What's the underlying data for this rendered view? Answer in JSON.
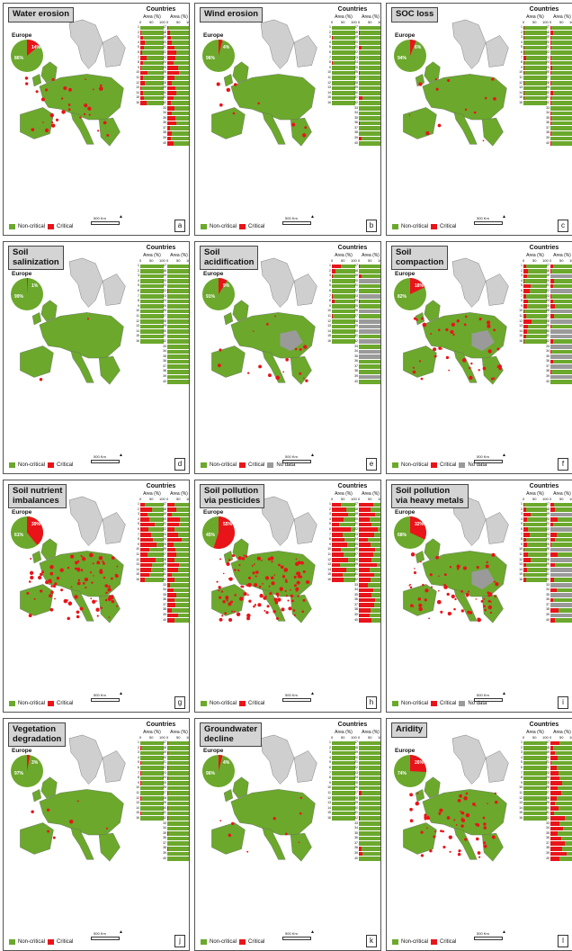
{
  "countries_title": "Countries",
  "area_label": "Area (%)",
  "ticks": [
    "0",
    "50",
    "100"
  ],
  "europe_label": "Europe",
  "legend": {
    "noncritical": "Non-critical",
    "critical": "Critical",
    "nodata": "No data"
  },
  "scale_label": "500",
  "scale_unit": "Km",
  "colors": {
    "noncritical": "#6ba82c",
    "critical": "#e8141a",
    "nodata": "#9a9a9a"
  },
  "codes_left": [
    "1",
    "2",
    "3",
    "4",
    "5",
    "6",
    "7",
    "8",
    "9",
    "10",
    "11",
    "12",
    "13",
    "14",
    "15",
    "16"
  ],
  "codes_right": [
    "17",
    "18",
    "19",
    "20",
    "21",
    "22",
    "23",
    "24",
    "25",
    "26",
    "27",
    "28",
    "29",
    "30",
    "31",
    "32",
    "33",
    "34",
    "35",
    "36",
    "37",
    "38",
    "39",
    "40"
  ],
  "panels": [
    {
      "title": "Water erosion",
      "letter": "a",
      "pie_noncritical": 86,
      "pie_label": "86%",
      "crit_label": "14%",
      "has_nodata": false,
      "left": [
        0,
        5,
        10,
        20,
        15,
        8,
        25,
        10,
        5,
        30,
        12,
        20,
        5,
        10,
        15,
        25
      ],
      "right": [
        5,
        10,
        15,
        20,
        30,
        40,
        35,
        25,
        45,
        50,
        30,
        20,
        35,
        40,
        25,
        15,
        30,
        20,
        35,
        40,
        10,
        20,
        15,
        25
      ]
    },
    {
      "title": "Wind erosion",
      "letter": "b",
      "pie_noncritical": 96,
      "pie_label": "96%",
      "crit_label": "4%",
      "has_nodata": false,
      "left": [
        0,
        0,
        2,
        0,
        0,
        0,
        0,
        5,
        0,
        0,
        0,
        0,
        0,
        0,
        0,
        0
      ],
      "right": [
        0,
        5,
        0,
        0,
        10,
        0,
        0,
        0,
        0,
        5,
        0,
        0,
        0,
        0,
        15,
        0,
        0,
        0,
        0,
        5,
        0,
        0,
        10,
        0
      ]
    },
    {
      "title": "SOC loss",
      "letter": "c",
      "pie_noncritical": 94,
      "pie_label": "94%",
      "crit_label": "6%",
      "has_nodata": false,
      "left": [
        5,
        2,
        5,
        0,
        2,
        5,
        10,
        3,
        2,
        5,
        0,
        2,
        0,
        5,
        2,
        0
      ],
      "right": [
        5,
        10,
        2,
        5,
        3,
        0,
        5,
        2,
        8,
        5,
        0,
        2,
        0,
        10,
        5,
        2,
        0,
        5,
        3,
        2,
        0,
        5,
        0,
        2
      ]
    },
    {
      "title": "Soil\nsalinization",
      "letter": "d",
      "pie_noncritical": 99,
      "pie_label": "99%",
      "crit_label": "1%",
      "has_nodata": false,
      "left": [
        0,
        0,
        0,
        0,
        0,
        0,
        0,
        0,
        0,
        0,
        0,
        0,
        0,
        0,
        0,
        0
      ],
      "right": [
        0,
        0,
        0,
        0,
        0,
        2,
        0,
        0,
        0,
        0,
        0,
        0,
        0,
        0,
        0,
        0,
        0,
        0,
        0,
        0,
        0,
        0,
        0,
        0
      ]
    },
    {
      "title": "Soil\nacidification",
      "letter": "e",
      "pie_noncritical": 91,
      "pie_label": "91%",
      "crit_label": "9%",
      "has_nodata": true,
      "left": [
        40,
        15,
        5,
        0,
        0,
        0,
        5,
        10,
        0,
        0,
        5,
        0,
        0,
        0,
        0,
        0
      ],
      "right": [
        5,
        0,
        10,
        -1,
        0,
        0,
        -1,
        5,
        0,
        -1,
        0,
        -1,
        -1,
        -1,
        0,
        -1,
        0,
        -1,
        -1,
        0,
        0,
        0,
        -1,
        0
      ]
    },
    {
      "title": "Soil\ncompaction",
      "letter": "f",
      "pie_noncritical": 82,
      "pie_label": "82%",
      "crit_label": "18%",
      "has_nodata": true,
      "left": [
        10,
        20,
        15,
        5,
        30,
        25,
        10,
        20,
        15,
        5,
        10,
        35,
        20,
        15,
        10,
        5
      ],
      "right": [
        10,
        5,
        -1,
        15,
        10,
        -1,
        5,
        10,
        20,
        -1,
        15,
        -1,
        5,
        -1,
        -1,
        10,
        -1,
        5,
        -1,
        10,
        -1,
        5,
        -1,
        0
      ]
    },
    {
      "title": "Soil nutrient\nimbalances",
      "letter": "g",
      "pie_noncritical": 61,
      "pie_label": "61%",
      "crit_label": "39%",
      "has_nodata": false,
      "left": [
        20,
        50,
        30,
        40,
        60,
        35,
        45,
        55,
        70,
        40,
        30,
        65,
        50,
        45,
        40,
        20
      ],
      "right": [
        30,
        40,
        20,
        55,
        50,
        30,
        45,
        60,
        25,
        35,
        40,
        30,
        50,
        45,
        20,
        30,
        10,
        25,
        40,
        30,
        35,
        20,
        45,
        30
      ]
    },
    {
      "title": "Soil pollution\nvia pesticides",
      "letter": "h",
      "pie_noncritical": 45,
      "pie_label": "45%",
      "crit_label": "55%",
      "has_nodata": false,
      "left": [
        40,
        60,
        70,
        50,
        30,
        80,
        45,
        55,
        65,
        40,
        50,
        70,
        35,
        60,
        45,
        50
      ],
      "right": [
        60,
        50,
        70,
        45,
        55,
        80,
        65,
        40,
        50,
        70,
        60,
        55,
        75,
        45,
        65,
        50,
        40,
        60,
        55,
        70,
        65,
        50,
        45,
        55
      ]
    },
    {
      "title": "Soil pollution\nvia heavy metals",
      "letter": "i",
      "pie_noncritical": 68,
      "pie_label": "68%",
      "crit_label": "32%",
      "has_nodata": true,
      "left": [
        5,
        10,
        30,
        15,
        5,
        20,
        25,
        10,
        15,
        5,
        20,
        30,
        10,
        15,
        5,
        10
      ],
      "right": [
        15,
        20,
        -1,
        30,
        10,
        -1,
        25,
        20,
        5,
        -1,
        30,
        -1,
        20,
        -1,
        -1,
        15,
        -1,
        25,
        -1,
        10,
        -1,
        35,
        -1,
        20
      ]
    },
    {
      "title": "Vegetation\ndegradation",
      "letter": "j",
      "pie_noncritical": 97,
      "pie_label": "97%",
      "crit_label": "3%",
      "has_nodata": false,
      "left": [
        0,
        2,
        0,
        0,
        3,
        0,
        2,
        0,
        5,
        0,
        0,
        2,
        0,
        0,
        3,
        0
      ],
      "right": [
        2,
        0,
        5,
        0,
        0,
        3,
        0,
        2,
        0,
        0,
        5,
        0,
        0,
        2,
        0,
        3,
        0,
        0,
        5,
        0,
        0,
        2,
        0,
        0
      ]
    },
    {
      "title": "Groundwater\ndecline",
      "letter": "k",
      "pie_noncritical": 96,
      "pie_label": "96%",
      "crit_label": "4%",
      "has_nodata": false,
      "left": [
        0,
        0,
        0,
        0,
        0,
        0,
        0,
        0,
        0,
        0,
        0,
        0,
        0,
        0,
        0,
        0
      ],
      "right": [
        0,
        0,
        0,
        0,
        0,
        0,
        0,
        0,
        0,
        0,
        10,
        0,
        0,
        0,
        0,
        5,
        0,
        0,
        0,
        0,
        0,
        10,
        15,
        0
      ]
    },
    {
      "title": "Aridity",
      "letter": "l",
      "pie_noncritical": 74,
      "pie_label": "74%",
      "crit_label": "26%",
      "has_nodata": false,
      "left": [
        0,
        0,
        0,
        0,
        0,
        0,
        0,
        0,
        0,
        0,
        0,
        0,
        0,
        0,
        0,
        0
      ],
      "right": [
        40,
        10,
        20,
        30,
        5,
        25,
        35,
        40,
        50,
        30,
        45,
        25,
        20,
        35,
        15,
        60,
        40,
        55,
        30,
        45,
        60,
        50,
        70,
        40
      ]
    }
  ]
}
